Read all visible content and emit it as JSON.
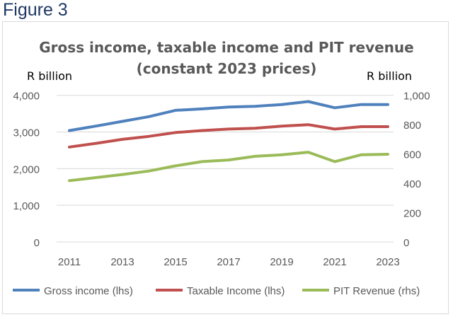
{
  "figure_label": "Figure 3",
  "chart_data": {
    "type": "line",
    "title": "Gross income, taxable income and PIT revenue",
    "subtitle": "(constant 2023 prices)",
    "ylabel": "R billion",
    "y2label": "R billion",
    "x": [
      2011,
      2012,
      2013,
      2014,
      2015,
      2016,
      2017,
      2018,
      2019,
      2020,
      2021,
      2022,
      2023
    ],
    "xticks": [
      "2011",
      "2013",
      "2015",
      "2017",
      "2019",
      "2021",
      "2023"
    ],
    "ylim": [
      0,
      4000
    ],
    "yticks": [
      "0",
      "1,000",
      "2,000",
      "3,000",
      "4,000"
    ],
    "y2lim": [
      0,
      1000
    ],
    "y2ticks": [
      "0",
      "200",
      "400",
      "600",
      "800",
      "1,000"
    ],
    "grid": true,
    "legend": "bottom",
    "series": [
      {
        "name": "Gross income (lhs)",
        "axis": "left",
        "color": "#4f81bd",
        "values": [
          3040,
          3160,
          3290,
          3420,
          3590,
          3630,
          3680,
          3700,
          3750,
          3830,
          3660,
          3750,
          3750
        ]
      },
      {
        "name": "Taxable Income (lhs)",
        "axis": "left",
        "color": "#c0504d",
        "values": [
          2590,
          2690,
          2800,
          2880,
          2985,
          3040,
          3080,
          3100,
          3160,
          3200,
          3080,
          3145,
          3145
        ]
      },
      {
        "name": "PIT Revenue (rhs)",
        "axis": "right",
        "color": "#9bbb59",
        "values": [
          418,
          439,
          460,
          484,
          519,
          548,
          559,
          584,
          595,
          612,
          548,
          595,
          598
        ]
      }
    ]
  }
}
